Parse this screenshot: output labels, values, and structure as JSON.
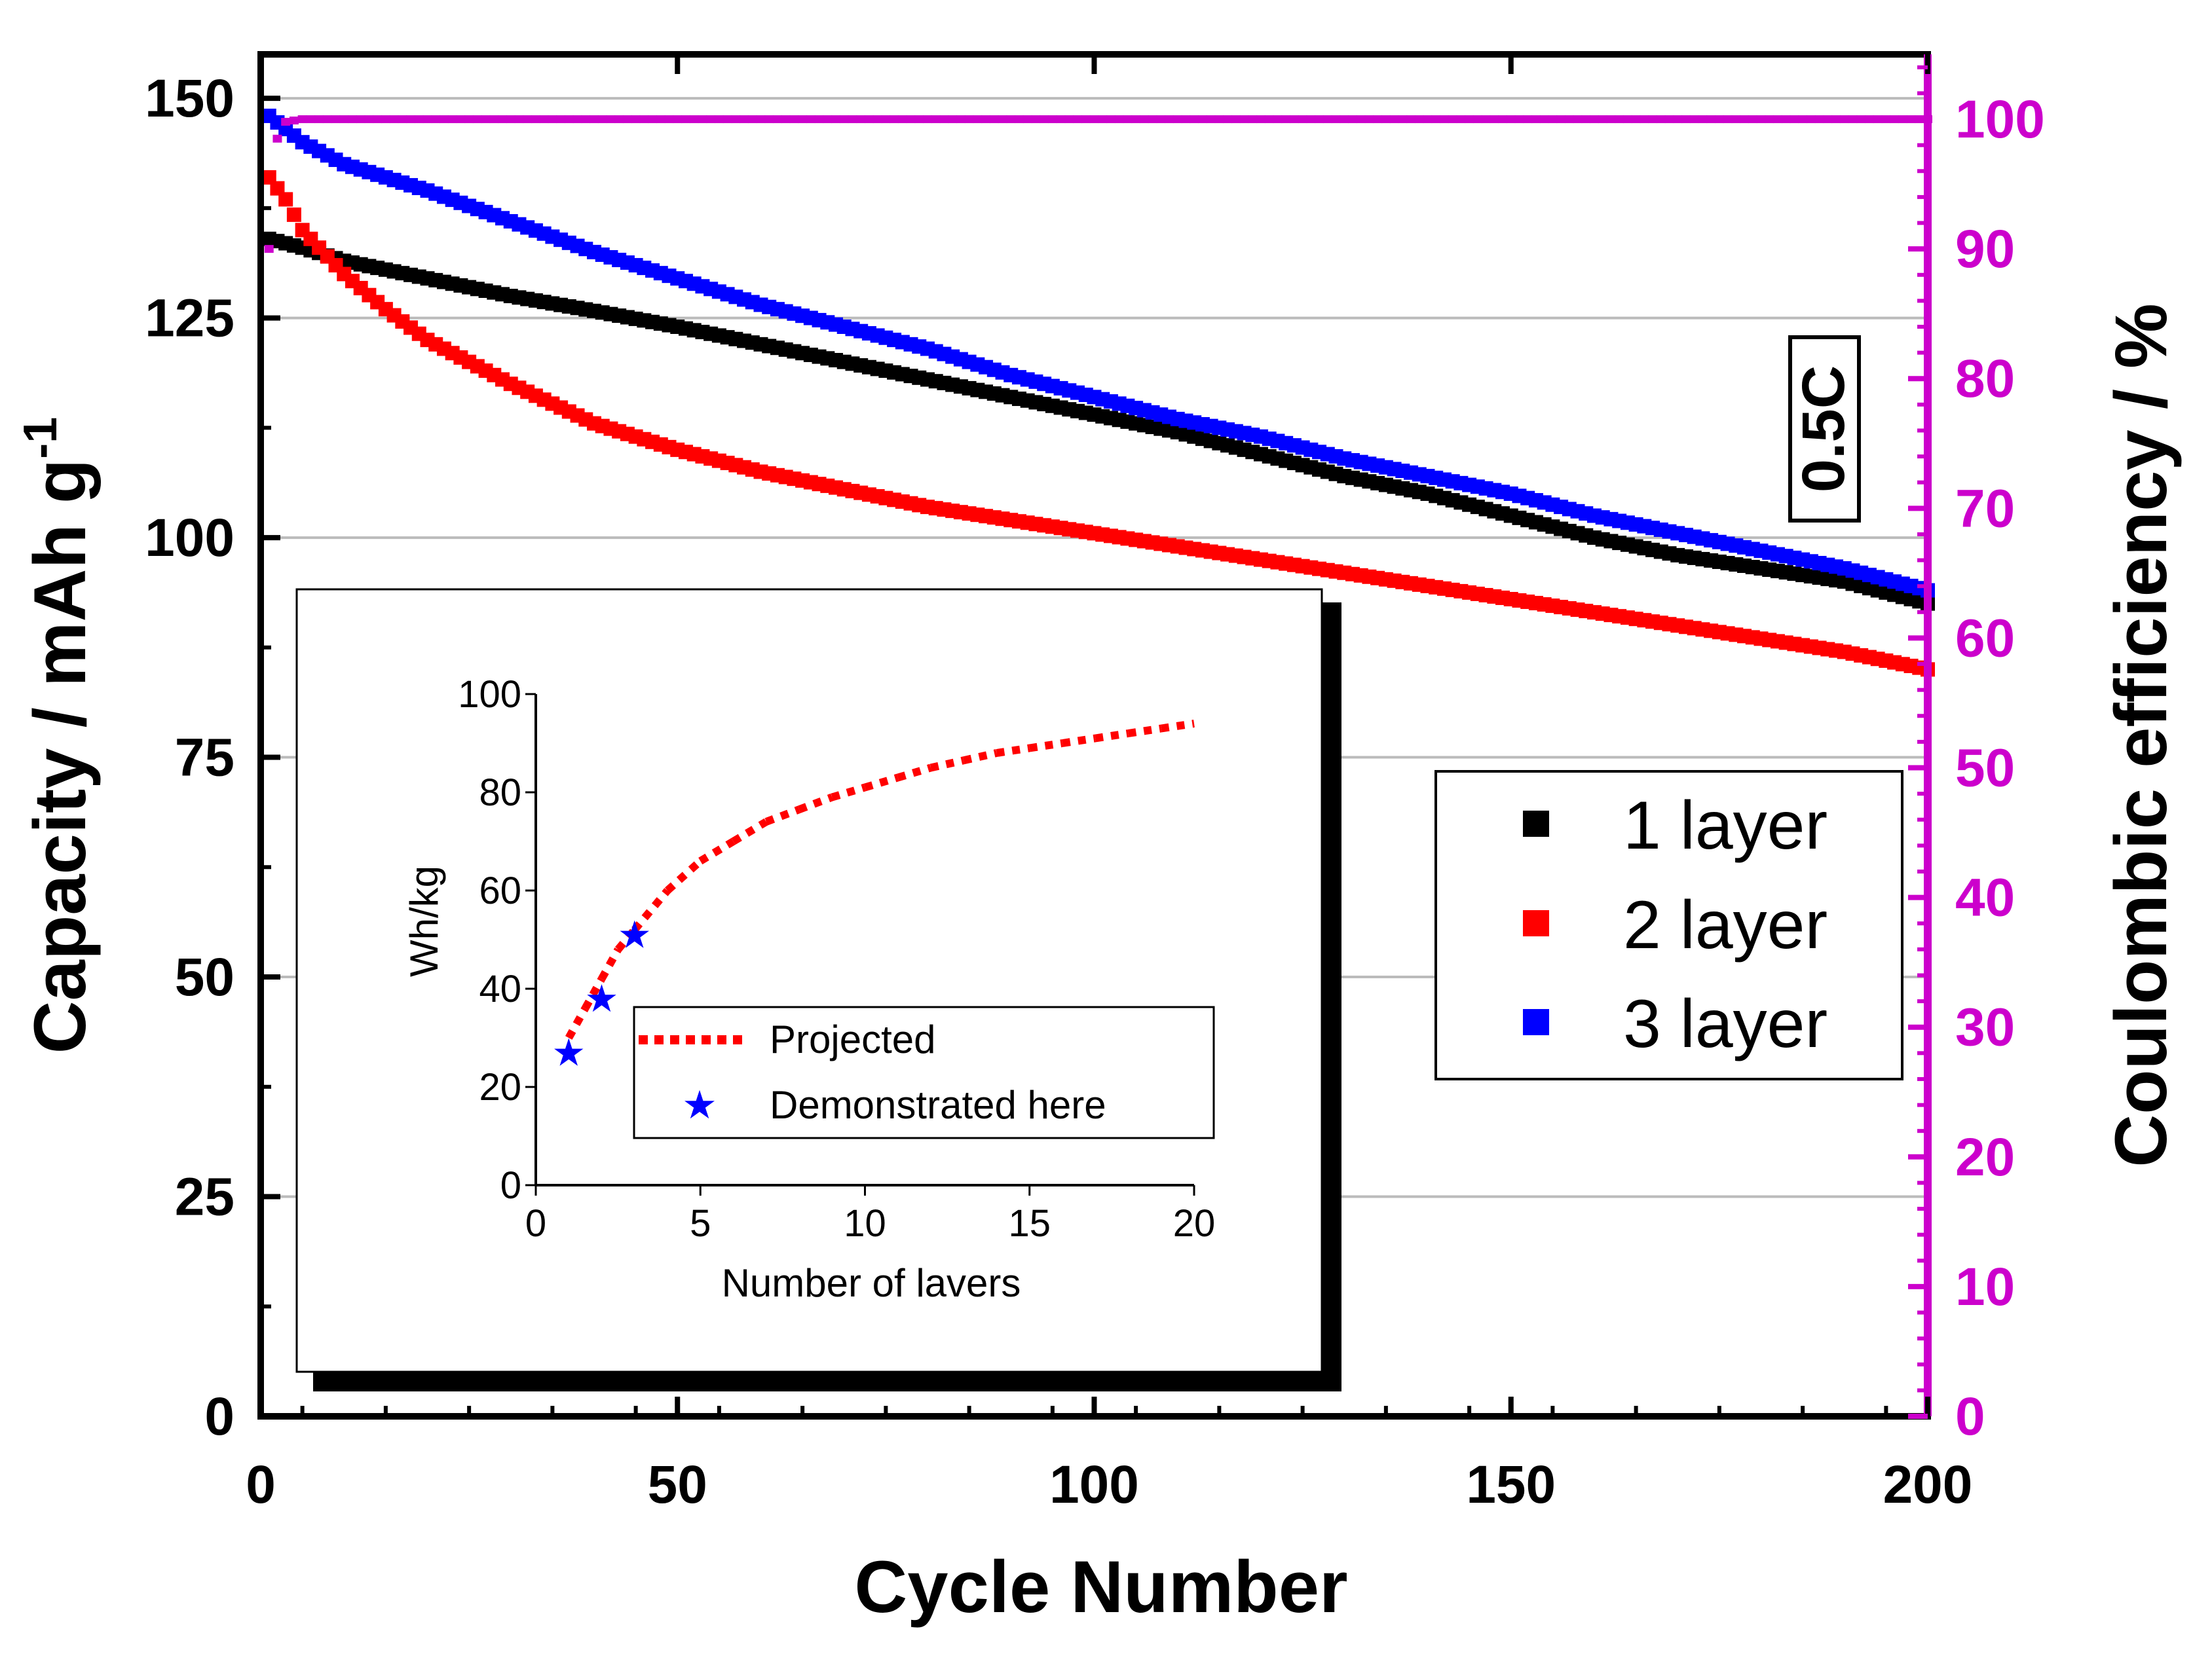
{
  "chart_data": [
    {
      "type": "scatter",
      "title": "",
      "xlabel": "Cycle Number",
      "ylabel": "Capacity / mAh g",
      "ylabel_superscript": "-1",
      "y2label": "Coulombic efficiency / %",
      "xlim": [
        0,
        200
      ],
      "ylim": [
        0,
        155
      ],
      "y2lim": [
        0,
        105
      ],
      "x_ticks": [
        "0",
        "50",
        "100",
        "150",
        "200"
      ],
      "y_ticks": [
        "0",
        "25",
        "50",
        "75",
        "100",
        "125",
        "150"
      ],
      "y2_ticks": [
        "0",
        "10",
        "20",
        "30",
        "40",
        "50",
        "60",
        "70",
        "80",
        "90",
        "100"
      ],
      "grid": "horizontal",
      "annotation": "0.5C",
      "legend_position": "right",
      "series": [
        {
          "name": "1 layer",
          "color": "#000000",
          "axis": "left",
          "x": [
            1,
            5,
            10,
            20,
            30,
            40,
            50,
            60,
            70,
            80,
            90,
            100,
            110,
            120,
            130,
            140,
            150,
            160,
            170,
            180,
            190,
            200
          ],
          "y": [
            134,
            133,
            131.5,
            129.5,
            127.5,
            125.8,
            124,
            122,
            120,
            118,
            116,
            114,
            112,
            109.5,
            107,
            105,
            102.5,
            100,
            98,
            96.5,
            95,
            92.5
          ]
        },
        {
          "name": "2 layer",
          "color": "#ff0000",
          "axis": "left",
          "x": [
            1,
            3,
            5,
            10,
            15,
            20,
            30,
            40,
            50,
            60,
            70,
            80,
            90,
            100,
            110,
            120,
            130,
            140,
            150,
            160,
            170,
            180,
            190,
            200
          ],
          "y": [
            141,
            138.5,
            135,
            130,
            126,
            122.5,
            117.5,
            113,
            110,
            107.5,
            105.5,
            103.5,
            102,
            100.5,
            99,
            97.5,
            96,
            94.5,
            93,
            91.5,
            90,
            88.5,
            87,
            85
          ]
        },
        {
          "name": "3 layer",
          "color": "#0000ff",
          "axis": "left",
          "x": [
            1,
            3,
            5,
            10,
            20,
            30,
            40,
            50,
            60,
            70,
            80,
            90,
            100,
            110,
            120,
            130,
            140,
            150,
            160,
            170,
            180,
            190,
            200
          ],
          "y": [
            148,
            146.5,
            145,
            142.5,
            139.5,
            136,
            132.5,
            129.5,
            126.5,
            124,
            121.5,
            118.5,
            116,
            113.5,
            111.5,
            109,
            107,
            105,
            102.5,
            100.5,
            98.5,
            96.5,
            94
          ]
        },
        {
          "name": "Coulombic efficiency",
          "color": "#cc00cc",
          "axis": "right",
          "x": [
            1,
            2,
            3,
            5,
            10,
            25,
            50,
            75,
            100,
            125,
            150,
            175,
            200
          ],
          "y": [
            90,
            98.5,
            99.8,
            100,
            100,
            100,
            100,
            100,
            100,
            100,
            100,
            100,
            100
          ]
        }
      ]
    },
    {
      "type": "scatter",
      "title": "",
      "xlabel": "Number of lavers",
      "ylabel": "Wh/kg",
      "xlim": [
        0,
        20
      ],
      "ylim": [
        0,
        100
      ],
      "x_ticks": [
        "0",
        "5",
        "10",
        "15",
        "20"
      ],
      "y_ticks": [
        "0",
        "20",
        "40",
        "60",
        "80",
        "100"
      ],
      "legend_position": "bottom-center",
      "series": [
        {
          "name": "Projected",
          "color": "#ff0000",
          "style": "dotted",
          "x": [
            1,
            1.5,
            2,
            2.5,
            3,
            4,
            5,
            6,
            7,
            8,
            9,
            10,
            11,
            12,
            13,
            14,
            15,
            16,
            17,
            18,
            19,
            20
          ],
          "y": [
            30,
            36,
            42,
            48,
            52,
            60,
            66,
            70,
            74,
            76.5,
            79,
            81,
            83,
            85,
            86.5,
            88,
            89,
            90,
            91,
            92,
            93,
            94
          ]
        },
        {
          "name": "Demonstrated here",
          "color": "#0000ff",
          "style": "star",
          "x": [
            1,
            2,
            3
          ],
          "y": [
            27,
            38,
            51
          ]
        }
      ]
    }
  ]
}
